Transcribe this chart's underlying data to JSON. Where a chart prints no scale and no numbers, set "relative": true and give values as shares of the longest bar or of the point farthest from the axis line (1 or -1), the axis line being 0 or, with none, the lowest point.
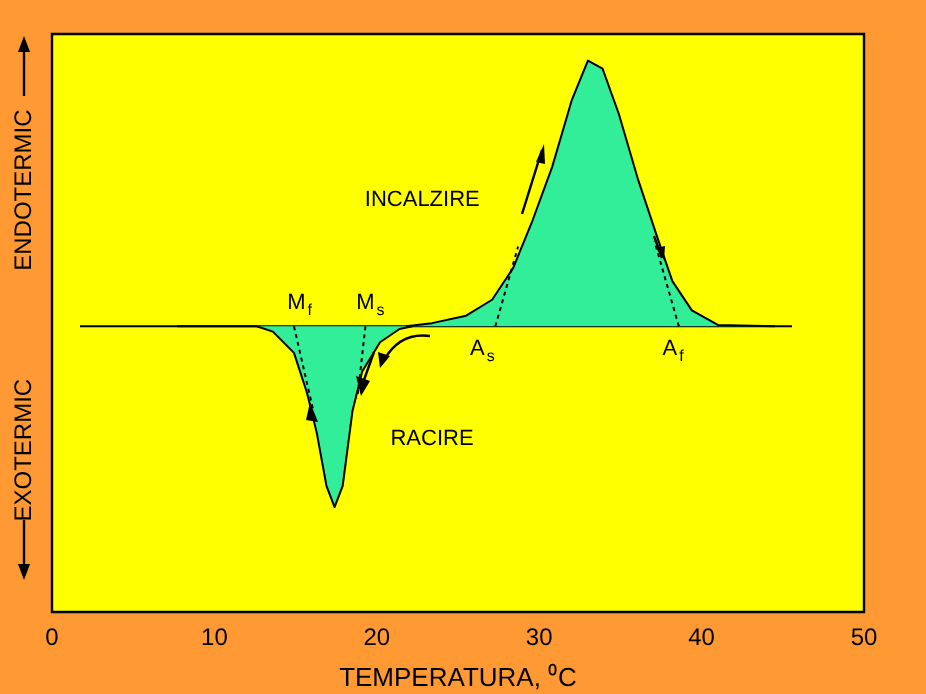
{
  "chart_data": {
    "type": "area",
    "xlabel": "TEMPERATURA, ⁰C",
    "relative": true,
    "xlim": [
      0,
      50
    ],
    "xticks": [
      0,
      10,
      20,
      30,
      40,
      50
    ],
    "grid": false,
    "legend": false,
    "series": [
      {
        "color": "#33ee99",
        "x": [
          21.8,
          23.4,
          25.5,
          27.1,
          28.4,
          29.6,
          30.8,
          32.0,
          33.0,
          33.9,
          34.9,
          36.1,
          37.3,
          38.2,
          39.4,
          41.0,
          44.5
        ],
        "values": [
          0,
          0.012,
          0.04,
          0.1,
          0.22,
          0.4,
          0.6,
          0.85,
          1.0,
          0.97,
          0.8,
          0.55,
          0.33,
          0.17,
          0.06,
          0.005,
          0
        ]
      },
      {
        "color": "#33ee99",
        "x": [
          7.7,
          12.6,
          13.6,
          14.9,
          15.7,
          16.3,
          16.9,
          17.4,
          17.9,
          18.5,
          19.1,
          20.2,
          21.4,
          22.2
        ],
        "values": [
          0,
          0,
          -0.02,
          -0.1,
          -0.25,
          -0.4,
          -0.6,
          -0.68,
          -0.6,
          -0.32,
          -0.17,
          -0.06,
          -0.01,
          0
        ]
      },
      {
        "type": "line",
        "color": "#000000",
        "line_style": "dashed",
        "x": [
          14.9,
          16.1
        ],
        "values": [
          0,
          -0.32
        ]
      },
      {
        "type": "line",
        "color": "#000000",
        "line_style": "dashed",
        "x": [
          19.3,
          18.8
        ],
        "values": [
          0,
          -0.27
        ]
      },
      {
        "type": "line",
        "color": "#000000",
        "line_style": "dashed",
        "x": [
          27.3,
          28.7
        ],
        "values": [
          0,
          0.3
        ]
      },
      {
        "type": "line",
        "color": "#000000",
        "line_style": "dashed",
        "x": [
          38.6,
          37.1
        ],
        "values": [
          0,
          0.32
        ]
      }
    ],
    "ref_lines": [
      {
        "axis": "y",
        "value": 0,
        "color": "#000000"
      }
    ],
    "annotations": [
      "M$_{f}$",
      "M$_{s}$",
      "A$_{s}$",
      "A$_{f}$",
      "INCALZIRE",
      "RACIRE",
      "ENDOTERMIC",
      "EXOTERMIC"
    ]
  }
}
